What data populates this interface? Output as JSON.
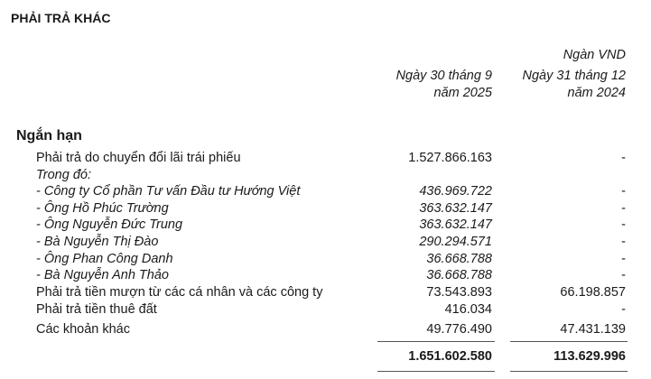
{
  "title": "PHẢI TRẢ KHÁC",
  "unit": "Ngàn VND",
  "columns": [
    {
      "line1": "Ngày 30 tháng 9",
      "line2": "năm 2025"
    },
    {
      "line1": "Ngày 31 tháng 12",
      "line2": "năm 2024"
    }
  ],
  "section": "Ngắn hạn",
  "rows": [
    {
      "label": "Phải trả do chuyển đổi lãi trái phiếu",
      "v1": "1.527.866.163",
      "v2": "-",
      "italic": false
    },
    {
      "label": "Trong đó:",
      "v1": "",
      "v2": "",
      "italic": true
    },
    {
      "label": "-  Công ty Cổ phần Tư vấn Đầu tư Hướng Việt",
      "v1": "436.969.722",
      "v2": "-",
      "italic": true
    },
    {
      "label": "-  Ông Hồ Phúc Trường",
      "v1": "363.632.147",
      "v2": "-",
      "italic": true
    },
    {
      "label": "-  Ông Nguyễn Đức Trung",
      "v1": "363.632.147",
      "v2": "-",
      "italic": true
    },
    {
      "label": "-  Bà Nguyễn Thị Đào",
      "v1": "290.294.571",
      "v2": "-",
      "italic": true
    },
    {
      "label": "-  Ông Phan Công Danh",
      "v1": "36.668.788",
      "v2": "-",
      "italic": true
    },
    {
      "label": "-  Bà Nguyễn Anh Thảo",
      "v1": "36.668.788",
      "v2": "-",
      "italic": true
    },
    {
      "label": "Phải trả tiền mượn từ các cá nhân và các công ty",
      "v1": "73.543.893",
      "v2": "66.198.857",
      "italic": false
    },
    {
      "label": "Phải trả tiền thuê đất",
      "v1": "416.034",
      "v2": "-",
      "italic": false
    },
    {
      "label": "Các khoản khác",
      "v1": "49.776.490",
      "v2": "47.431.139",
      "italic": false
    }
  ],
  "total": {
    "v1": "1.651.602.580",
    "v2": "113.629.996"
  }
}
